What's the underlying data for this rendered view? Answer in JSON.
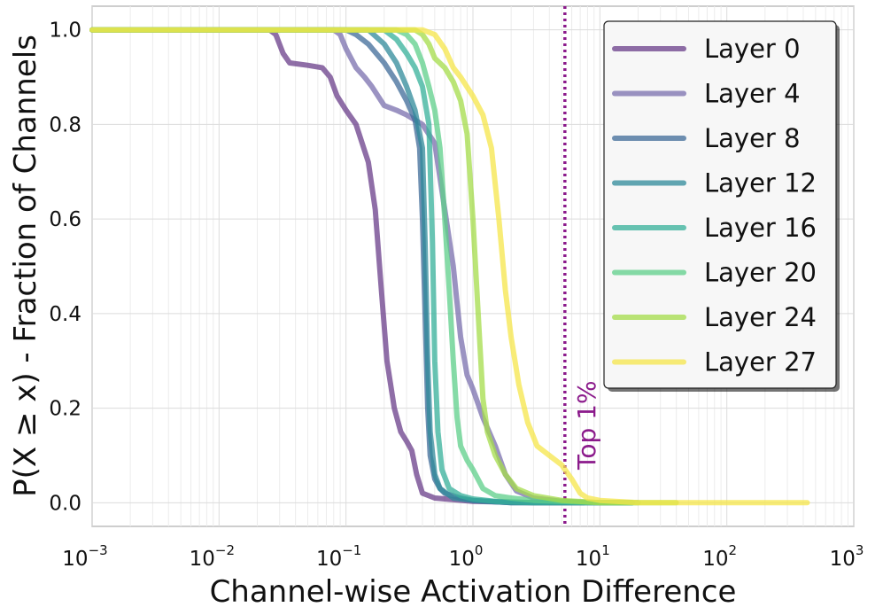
{
  "chart_data": {
    "type": "line",
    "xlabel": "Channel-wise Activation Difference",
    "ylabel": "P(X ≥ x) - Fraction of Channels",
    "x_scale": "log",
    "xlim": [
      0.001,
      1000
    ],
    "ylim": [
      -0.05,
      1.05
    ],
    "grid": true,
    "legend_position": "top-right",
    "x_ticks": [
      {
        "base": "10",
        "exp": "−3",
        "value": 0.001
      },
      {
        "base": "10",
        "exp": "−2",
        "value": 0.01
      },
      {
        "base": "10",
        "exp": "−1",
        "value": 0.1
      },
      {
        "base": "10",
        "exp": "0",
        "value": 1
      },
      {
        "base": "10",
        "exp": "1",
        "value": 10
      },
      {
        "base": "10",
        "exp": "2",
        "value": 100
      },
      {
        "base": "10",
        "exp": "3",
        "value": 1000
      }
    ],
    "y_ticks": [
      {
        "label": "0.0",
        "value": 0.0
      },
      {
        "label": "0.2",
        "value": 0.2
      },
      {
        "label": "0.4",
        "value": 0.4
      },
      {
        "label": "0.6",
        "value": 0.6
      },
      {
        "label": "0.8",
        "value": 0.8
      },
      {
        "label": "1.0",
        "value": 1.0
      }
    ],
    "annotation": {
      "text": "Top 1%",
      "x": 5.3,
      "color": "#8b1a8b"
    },
    "series": [
      {
        "name": "Layer 0",
        "color": "#6a3d8a",
        "points": [
          [
            0.001,
            1.0
          ],
          [
            0.025,
            1.0
          ],
          [
            0.028,
            0.99
          ],
          [
            0.032,
            0.95
          ],
          [
            0.036,
            0.93
          ],
          [
            0.05,
            0.925
          ],
          [
            0.065,
            0.92
          ],
          [
            0.075,
            0.9
          ],
          [
            0.085,
            0.86
          ],
          [
            0.1,
            0.83
          ],
          [
            0.12,
            0.8
          ],
          [
            0.15,
            0.72
          ],
          [
            0.17,
            0.62
          ],
          [
            0.19,
            0.45
          ],
          [
            0.21,
            0.3
          ],
          [
            0.24,
            0.2
          ],
          [
            0.27,
            0.15
          ],
          [
            0.3,
            0.13
          ],
          [
            0.33,
            0.11
          ],
          [
            0.36,
            0.06
          ],
          [
            0.4,
            0.02
          ],
          [
            0.5,
            0.01
          ],
          [
            1.0,
            0.003
          ],
          [
            3.0,
            0.0
          ],
          [
            7.5,
            0.0
          ]
        ]
      },
      {
        "name": "Layer 4",
        "color": "#7a6fad",
        "points": [
          [
            0.001,
            1.0
          ],
          [
            0.08,
            1.0
          ],
          [
            0.09,
            0.99
          ],
          [
            0.1,
            0.96
          ],
          [
            0.12,
            0.92
          ],
          [
            0.14,
            0.9
          ],
          [
            0.16,
            0.88
          ],
          [
            0.2,
            0.84
          ],
          [
            0.25,
            0.83
          ],
          [
            0.3,
            0.82
          ],
          [
            0.4,
            0.8
          ],
          [
            0.5,
            0.76
          ],
          [
            0.6,
            0.62
          ],
          [
            0.7,
            0.5
          ],
          [
            0.8,
            0.35
          ],
          [
            0.9,
            0.27
          ],
          [
            1.0,
            0.24
          ],
          [
            1.2,
            0.18
          ],
          [
            1.5,
            0.12
          ],
          [
            1.8,
            0.06
          ],
          [
            2.2,
            0.025
          ],
          [
            3.0,
            0.01
          ],
          [
            5.0,
            0.003
          ],
          [
            10.0,
            0.0
          ],
          [
            18.0,
            0.0
          ]
        ]
      },
      {
        "name": "Layer 8",
        "color": "#3f6b98",
        "points": [
          [
            0.001,
            1.0
          ],
          [
            0.1,
            1.0
          ],
          [
            0.12,
            0.99
          ],
          [
            0.15,
            0.97
          ],
          [
            0.2,
            0.93
          ],
          [
            0.25,
            0.89
          ],
          [
            0.3,
            0.85
          ],
          [
            0.35,
            0.81
          ],
          [
            0.38,
            0.75
          ],
          [
            0.4,
            0.6
          ],
          [
            0.42,
            0.4
          ],
          [
            0.44,
            0.2
          ],
          [
            0.46,
            0.1
          ],
          [
            0.5,
            0.05
          ],
          [
            0.55,
            0.03
          ],
          [
            0.6,
            0.02
          ],
          [
            0.8,
            0.01
          ],
          [
            1.0,
            0.005
          ],
          [
            2.0,
            0.0
          ],
          [
            18.0,
            0.0
          ]
        ]
      },
      {
        "name": "Layer 12",
        "color": "#2f8a9a",
        "points": [
          [
            0.001,
            1.0
          ],
          [
            0.15,
            1.0
          ],
          [
            0.2,
            0.97
          ],
          [
            0.25,
            0.93
          ],
          [
            0.3,
            0.88
          ],
          [
            0.35,
            0.83
          ],
          [
            0.4,
            0.75
          ],
          [
            0.42,
            0.55
          ],
          [
            0.44,
            0.3
          ],
          [
            0.46,
            0.15
          ],
          [
            0.5,
            0.06
          ],
          [
            0.55,
            0.03
          ],
          [
            0.7,
            0.01
          ],
          [
            1.0,
            0.005
          ],
          [
            2.0,
            0.0
          ],
          [
            18.0,
            0.0
          ]
        ]
      },
      {
        "name": "Layer 16",
        "color": "#35b09a",
        "points": [
          [
            0.001,
            1.0
          ],
          [
            0.2,
            1.0
          ],
          [
            0.25,
            0.98
          ],
          [
            0.3,
            0.95
          ],
          [
            0.35,
            0.92
          ],
          [
            0.4,
            0.88
          ],
          [
            0.45,
            0.8
          ],
          [
            0.48,
            0.55
          ],
          [
            0.5,
            0.3
          ],
          [
            0.53,
            0.15
          ],
          [
            0.57,
            0.07
          ],
          [
            0.65,
            0.03
          ],
          [
            0.8,
            0.015
          ],
          [
            1.0,
            0.008
          ],
          [
            1.5,
            0.003
          ],
          [
            3.0,
            0.0
          ],
          [
            18.0,
            0.0
          ]
        ]
      },
      {
        "name": "Layer 20",
        "color": "#5dcf8a",
        "points": [
          [
            0.001,
            1.0
          ],
          [
            0.25,
            1.0
          ],
          [
            0.3,
            0.99
          ],
          [
            0.35,
            0.97
          ],
          [
            0.4,
            0.93
          ],
          [
            0.45,
            0.88
          ],
          [
            0.5,
            0.83
          ],
          [
            0.55,
            0.75
          ],
          [
            0.6,
            0.6
          ],
          [
            0.65,
            0.45
          ],
          [
            0.7,
            0.3
          ],
          [
            0.75,
            0.18
          ],
          [
            0.8,
            0.12
          ],
          [
            0.9,
            0.09
          ],
          [
            1.0,
            0.07
          ],
          [
            1.2,
            0.03
          ],
          [
            1.5,
            0.015
          ],
          [
            2.0,
            0.01
          ],
          [
            3.0,
            0.005
          ],
          [
            10.0,
            0.0
          ],
          [
            20.0,
            0.0
          ]
        ]
      },
      {
        "name": "Layer 24",
        "color": "#a4dc4a",
        "points": [
          [
            0.001,
            1.0
          ],
          [
            0.35,
            1.0
          ],
          [
            0.4,
            0.99
          ],
          [
            0.45,
            0.97
          ],
          [
            0.5,
            0.94
          ],
          [
            0.6,
            0.92
          ],
          [
            0.7,
            0.89
          ],
          [
            0.8,
            0.85
          ],
          [
            0.9,
            0.78
          ],
          [
            1.0,
            0.6
          ],
          [
            1.1,
            0.4
          ],
          [
            1.2,
            0.22
          ],
          [
            1.3,
            0.15
          ],
          [
            1.5,
            0.1
          ],
          [
            1.8,
            0.06
          ],
          [
            2.2,
            0.03
          ],
          [
            3.0,
            0.015
          ],
          [
            5.0,
            0.005
          ],
          [
            10.0,
            0.0
          ],
          [
            40.0,
            0.0
          ]
        ]
      },
      {
        "name": "Layer 27",
        "color": "#f5e64a",
        "points": [
          [
            0.001,
            1.0
          ],
          [
            0.4,
            1.0
          ],
          [
            0.5,
            0.99
          ],
          [
            0.6,
            0.96
          ],
          [
            0.7,
            0.92
          ],
          [
            0.8,
            0.9
          ],
          [
            1.0,
            0.86
          ],
          [
            1.2,
            0.82
          ],
          [
            1.4,
            0.75
          ],
          [
            1.6,
            0.6
          ],
          [
            1.8,
            0.45
          ],
          [
            2.0,
            0.35
          ],
          [
            2.3,
            0.25
          ],
          [
            2.7,
            0.17
          ],
          [
            3.2,
            0.12
          ],
          [
            4.0,
            0.1
          ],
          [
            5.0,
            0.08
          ],
          [
            6.0,
            0.05
          ],
          [
            7.0,
            0.02
          ],
          [
            8.0,
            0.01
          ],
          [
            10.0,
            0.005
          ],
          [
            20.0,
            0.0
          ],
          [
            430.0,
            0.0
          ]
        ]
      }
    ]
  }
}
